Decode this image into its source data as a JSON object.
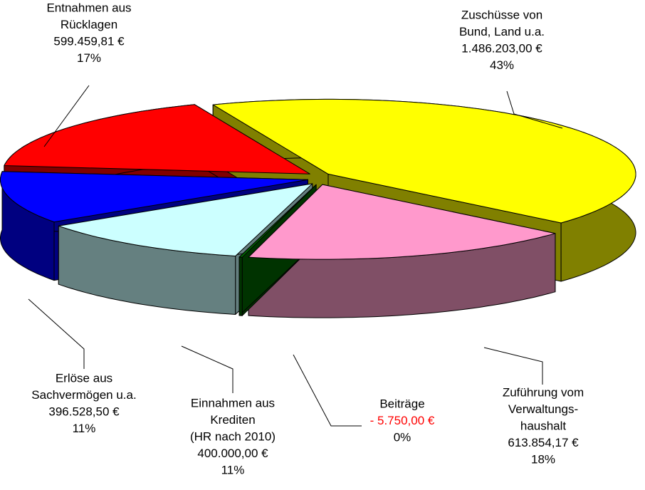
{
  "chart_data": {
    "type": "pie",
    "categories": [
      [
        "Zuschüsse von",
        "Bund, Land u.a."
      ],
      [
        "Zuführung vom",
        "Verwaltungs-",
        "haushalt"
      ],
      [
        "Beiträge"
      ],
      [
        "Einnahmen aus",
        "Krediten",
        "(HR nach 2010)"
      ],
      [
        "Erlöse aus",
        "Sachvermögen u.a."
      ],
      [
        "Entnahmen aus",
        "Rücklagen"
      ]
    ],
    "values": [
      1486203.0,
      613854.17,
      -5750.0,
      400000.0,
      396528.5,
      599459.81
    ],
    "value_labels": [
      "1.486.203,00 €",
      "613.854,17 €",
      "- 5.750,00 €",
      "400.000,00 €",
      "396.528,50 €",
      "599.459,81 €"
    ],
    "value_label_colors": [
      "#000000",
      "#000000",
      "#ff0000",
      "#000000",
      "#000000",
      "#000000"
    ],
    "percents": [
      43,
      18,
      0,
      11,
      11,
      17
    ],
    "percent_labels": [
      "43%",
      "18%",
      "0%",
      "11%",
      "11%",
      "17%"
    ],
    "colors": [
      "#ffff00",
      "#ff99cc",
      "#006600",
      "#ccffff",
      "#0000ff",
      "#ff0000"
    ],
    "side_colors": [
      "#808000",
      "#804f66",
      "#003300",
      "#658080",
      "#000080",
      "#800000"
    ]
  }
}
